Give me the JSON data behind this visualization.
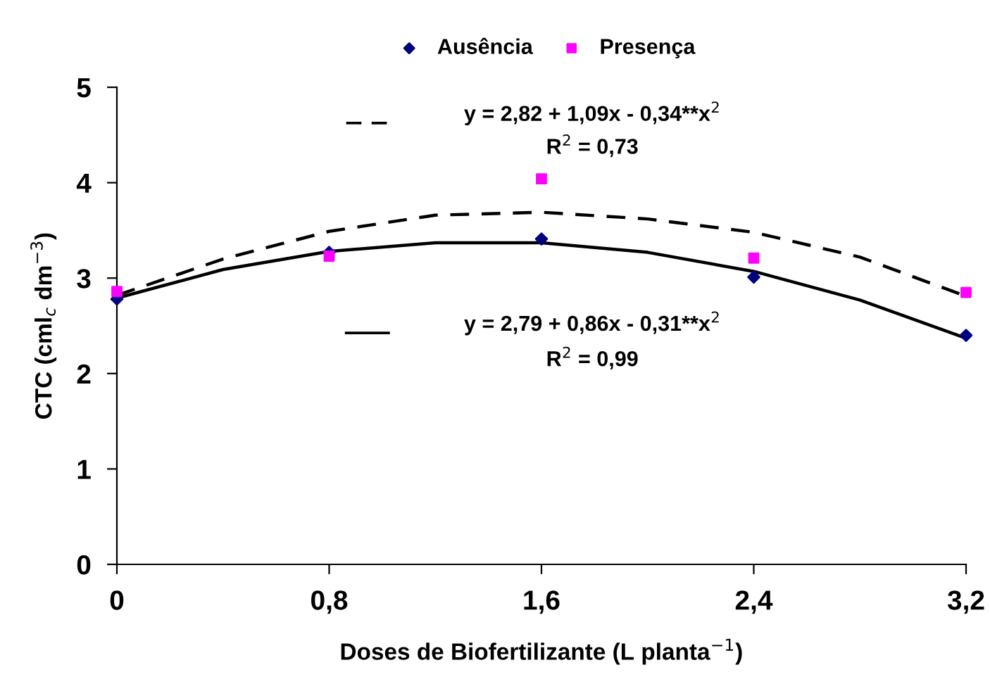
{
  "chart_data": {
    "type": "scatter",
    "xlabel": "Doses de Biofertilizante (L planta$^{−1}$)",
    "ylabel": "CTC (cml$_{c}$ dm$^{−3}$)",
    "x": [
      0,
      0.8,
      1.6,
      2.4,
      3.2
    ],
    "xlim": [
      0,
      3.2
    ],
    "xticks": [
      0,
      {
        "value": 0.8,
        "label": "0,8"
      },
      {
        "value": 1.6,
        "label": "1,6"
      },
      {
        "value": 2.4,
        "label": "2,4"
      },
      {
        "value": 3.2,
        "label": "3,2"
      }
    ],
    "ylim": [
      0,
      5
    ],
    "yticks": [
      0,
      1,
      2,
      3,
      4,
      5
    ],
    "grid": false,
    "legend": "top",
    "series": [
      {
        "name": "Ausência",
        "color": "#000080",
        "marker": "diamond",
        "values": [
          2.78,
          3.27,
          3.41,
          3.01,
          2.4
        ]
      },
      {
        "name": "Presença",
        "color": "#ff00ff",
        "marker": "square",
        "values": [
          2.86,
          3.23,
          4.04,
          3.21,
          2.85
        ]
      },
      {
        "type": "line",
        "color": "#000000",
        "line_style": "dashed",
        "x": [
          0,
          0.4,
          0.8,
          1.2,
          1.6,
          2.0,
          2.4,
          2.8,
          3.2
        ],
        "values": [
          2.82,
          3.2,
          3.49,
          3.66,
          3.69,
          3.62,
          3.48,
          3.22,
          2.81
        ]
      },
      {
        "type": "line",
        "color": "#000000",
        "line_style": "solid",
        "x": [
          0,
          0.4,
          0.8,
          1.2,
          1.6,
          2.0,
          2.4,
          2.8,
          3.2
        ],
        "values": [
          2.79,
          3.09,
          3.28,
          3.37,
          3.37,
          3.27,
          3.07,
          2.77,
          2.37
        ]
      }
    ],
    "annotations": [
      "y = 2,82 + 1,09x - 0,34**x$^{2}$",
      "R$^{2}$ = 0,73",
      "y = 2,79 + 0,86x - 0,31**x$^{2}$",
      "R$^{2}$ = 0,99"
    ]
  }
}
